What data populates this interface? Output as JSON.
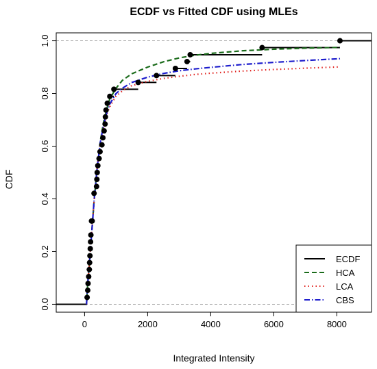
{
  "chart_data": {
    "type": "line",
    "title": "ECDF vs Fitted CDF using MLEs",
    "xlabel": "Integrated Intensity",
    "ylabel": "CDF",
    "xlim": [
      -900,
      9100
    ],
    "ylim": [
      -0.03,
      1.03
    ],
    "xticks": [
      0,
      2000,
      4000,
      6000,
      8000
    ],
    "yticks": [
      0.0,
      0.2,
      0.4,
      0.6,
      0.8,
      1.0
    ],
    "xtick_labels": [
      "0",
      "2000",
      "4000",
      "6000",
      "8000"
    ],
    "ytick_labels": [
      "0.0",
      "0.2",
      "0.4",
      "0.6",
      "0.8",
      "1.0"
    ],
    "reference_lines_y": [
      0,
      1
    ],
    "legend_position": "bottom-right",
    "ecdf_points": [
      {
        "x": 80,
        "y": 0.026
      },
      {
        "x": 100,
        "y": 0.053
      },
      {
        "x": 110,
        "y": 0.079
      },
      {
        "x": 130,
        "y": 0.105
      },
      {
        "x": 150,
        "y": 0.132
      },
      {
        "x": 160,
        "y": 0.158
      },
      {
        "x": 170,
        "y": 0.184
      },
      {
        "x": 180,
        "y": 0.211
      },
      {
        "x": 190,
        "y": 0.237
      },
      {
        "x": 200,
        "y": 0.263
      },
      {
        "x": 220,
        "y": 0.316
      },
      {
        "x": 240,
        "y": 0.316
      },
      {
        "x": 300,
        "y": 0.421
      },
      {
        "x": 380,
        "y": 0.447
      },
      {
        "x": 390,
        "y": 0.474
      },
      {
        "x": 400,
        "y": 0.5
      },
      {
        "x": 420,
        "y": 0.526
      },
      {
        "x": 460,
        "y": 0.553
      },
      {
        "x": 490,
        "y": 0.579
      },
      {
        "x": 550,
        "y": 0.605
      },
      {
        "x": 580,
        "y": 0.632
      },
      {
        "x": 620,
        "y": 0.658
      },
      {
        "x": 650,
        "y": 0.684
      },
      {
        "x": 660,
        "y": 0.711
      },
      {
        "x": 680,
        "y": 0.737
      },
      {
        "x": 720,
        "y": 0.763
      },
      {
        "x": 800,
        "y": 0.789
      },
      {
        "x": 930,
        "y": 0.816
      },
      {
        "x": 1700,
        "y": 0.842
      },
      {
        "x": 2280,
        "y": 0.868
      },
      {
        "x": 2880,
        "y": 0.895
      },
      {
        "x": 3250,
        "y": 0.921
      },
      {
        "x": 3350,
        "y": 0.947
      },
      {
        "x": 5630,
        "y": 0.974
      },
      {
        "x": 8100,
        "y": 1.0
      }
    ],
    "series": [
      {
        "name": "ECDF",
        "color": "#000000",
        "dash": "solid"
      },
      {
        "name": "HCA",
        "color": "#1a6b1a",
        "dash": "dashed",
        "x": [
          60,
          100,
          150,
          200,
          250,
          300,
          400,
          500,
          600,
          700,
          800,
          900,
          1000,
          1200,
          1500,
          2000,
          2500,
          3000,
          3500,
          4000,
          5000,
          6000,
          7000,
          8100
        ],
        "y": [
          0.0,
          0.08,
          0.15,
          0.23,
          0.31,
          0.39,
          0.52,
          0.62,
          0.69,
          0.74,
          0.78,
          0.8,
          0.82,
          0.85,
          0.875,
          0.9,
          0.92,
          0.935,
          0.945,
          0.952,
          0.962,
          0.968,
          0.972,
          0.975
        ]
      },
      {
        "name": "LCA",
        "color": "#e0201c",
        "dash": "dotted",
        "x": [
          60,
          100,
          150,
          200,
          250,
          300,
          400,
          500,
          600,
          700,
          800,
          900,
          1000,
          1200,
          1500,
          2000,
          2500,
          3000,
          3500,
          4000,
          5000,
          6000,
          7000,
          8100
        ],
        "y": [
          0.0,
          0.08,
          0.15,
          0.23,
          0.31,
          0.39,
          0.52,
          0.61,
          0.67,
          0.72,
          0.75,
          0.77,
          0.79,
          0.81,
          0.83,
          0.846,
          0.857,
          0.865,
          0.872,
          0.877,
          0.885,
          0.891,
          0.896,
          0.901
        ]
      },
      {
        "name": "CBS",
        "color": "#1c1ccc",
        "dash": "dashdot",
        "x": [
          60,
          100,
          150,
          200,
          250,
          300,
          400,
          500,
          600,
          700,
          800,
          900,
          1000,
          1200,
          1500,
          2000,
          2500,
          3000,
          3500,
          4000,
          5000,
          6000,
          7000,
          8100
        ],
        "y": [
          0.0,
          0.08,
          0.15,
          0.23,
          0.31,
          0.39,
          0.52,
          0.615,
          0.68,
          0.725,
          0.76,
          0.78,
          0.8,
          0.82,
          0.842,
          0.862,
          0.876,
          0.886,
          0.893,
          0.899,
          0.91,
          0.918,
          0.925,
          0.932
        ]
      }
    ]
  }
}
